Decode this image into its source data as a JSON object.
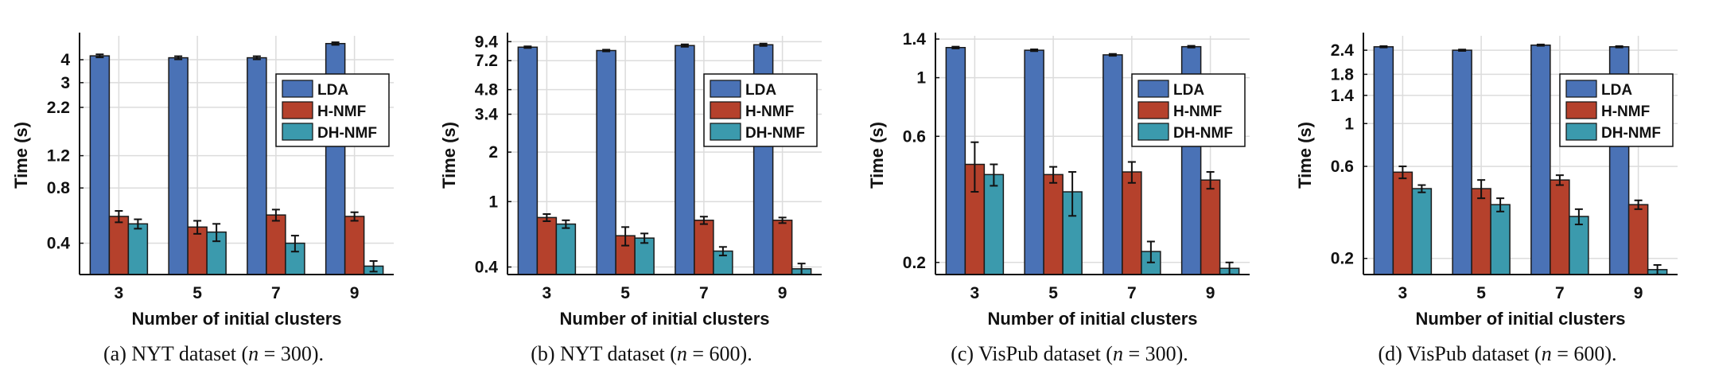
{
  "colors": {
    "LDA": "#4a72b6",
    "H-NMF": "#b5412c",
    "DH-NMF": "#3b9aad"
  },
  "chart_data": [
    {
      "type": "bar",
      "caption": {
        "prefix": "(a) NYT dataset (",
        "var": "n",
        "suffix": " = 300)."
      },
      "categories": [
        "3",
        "5",
        "7",
        "9"
      ],
      "xlabel": "Number of initial clusters",
      "ylabel": "Time (s)",
      "yscale": "log",
      "ylim": [
        0.27,
        5.4
      ],
      "yticks": [
        0.4,
        0.8,
        1.2,
        2.2,
        3,
        4
      ],
      "yticklabels": [
        "0.4",
        "0.8",
        "1.2",
        "2.2",
        "3",
        "4"
      ],
      "legend": "upper-right",
      "series": [
        {
          "name": "LDA",
          "values": [
            4.2,
            4.1,
            4.1,
            4.9
          ],
          "errors": [
            0.08,
            0.08,
            0.08,
            0.08
          ]
        },
        {
          "name": "H-NMF",
          "values": [
            0.56,
            0.49,
            0.57,
            0.56
          ],
          "errors": [
            0.04,
            0.04,
            0.04,
            0.03
          ]
        },
        {
          "name": "DH-NMF",
          "values": [
            0.51,
            0.46,
            0.4,
            0.3
          ],
          "errors": [
            0.03,
            0.05,
            0.04,
            0.02
          ]
        }
      ]
    },
    {
      "type": "bar",
      "caption": {
        "prefix": "(b) NYT dataset (",
        "var": "n",
        "suffix": " = 600)."
      },
      "categories": [
        "3",
        "5",
        "7",
        "9"
      ],
      "xlabel": "Number of initial clusters",
      "ylabel": "Time (s)",
      "yscale": "log",
      "ylim": [
        0.36,
        10.2
      ],
      "yticks": [
        0.4,
        1,
        2,
        3.4,
        4.8,
        7.2,
        9.4
      ],
      "yticklabels": [
        "0.4",
        "1",
        "2",
        "3.4",
        "4.8",
        "7.2",
        "9.4"
      ],
      "legend": "upper-right",
      "series": [
        {
          "name": "LDA",
          "values": [
            8.7,
            8.3,
            8.9,
            9.0
          ],
          "errors": [
            0.1,
            0.1,
            0.15,
            0.15
          ]
        },
        {
          "name": "H-NMF",
          "values": [
            0.8,
            0.62,
            0.77,
            0.77
          ],
          "errors": [
            0.04,
            0.08,
            0.04,
            0.03
          ]
        },
        {
          "name": "DH-NMF",
          "values": [
            0.73,
            0.6,
            0.5,
            0.39
          ],
          "errors": [
            0.04,
            0.04,
            0.03,
            0.03
          ]
        }
      ]
    },
    {
      "type": "bar",
      "caption": {
        "prefix": "(c) VisPub dataset (",
        "var": "n",
        "suffix": " = 300)."
      },
      "categories": [
        "3",
        "5",
        "7",
        "9"
      ],
      "xlabel": "Number of initial clusters",
      "ylabel": "Time (s)",
      "yscale": "log",
      "ylim": [
        0.18,
        1.44
      ],
      "yticks": [
        0.2,
        0.6,
        1,
        1.4
      ],
      "yticklabels": [
        "0.2",
        "0.6",
        "1",
        "1.4"
      ],
      "legend": "upper-right",
      "series": [
        {
          "name": "LDA",
          "values": [
            1.3,
            1.27,
            1.22,
            1.31
          ],
          "errors": [
            0.01,
            0.01,
            0.01,
            0.01
          ]
        },
        {
          "name": "H-NMF",
          "values": [
            0.47,
            0.43,
            0.44,
            0.41
          ],
          "errors": [
            0.1,
            0.03,
            0.04,
            0.03
          ]
        },
        {
          "name": "DH-NMF",
          "values": [
            0.43,
            0.37,
            0.22,
            0.19
          ],
          "errors": [
            0.04,
            0.07,
            0.02,
            0.01
          ]
        }
      ]
    },
    {
      "type": "bar",
      "caption": {
        "prefix": "(d) VisPub dataset (",
        "var": "n",
        "suffix": " = 600)."
      },
      "categories": [
        "3",
        "5",
        "7",
        "9"
      ],
      "xlabel": "Number of initial clusters",
      "ylabel": "Time (s)",
      "yscale": "log",
      "ylim": [
        0.165,
        2.85
      ],
      "yticks": [
        0.2,
        0.6,
        1,
        1.4,
        1.8,
        2.4
      ],
      "yticklabels": [
        "0.2",
        "0.6",
        "1",
        "1.4",
        "1.8",
        "2.4"
      ],
      "legend": "upper-right",
      "series": [
        {
          "name": "LDA",
          "values": [
            2.5,
            2.4,
            2.55,
            2.5
          ],
          "errors": [
            0.02,
            0.02,
            0.02,
            0.02
          ]
        },
        {
          "name": "H-NMF",
          "values": [
            0.56,
            0.46,
            0.51,
            0.38
          ],
          "errors": [
            0.04,
            0.05,
            0.03,
            0.02
          ]
        },
        {
          "name": "DH-NMF",
          "values": [
            0.46,
            0.38,
            0.33,
            0.175
          ],
          "errors": [
            0.02,
            0.03,
            0.03,
            0.01
          ]
        }
      ]
    }
  ]
}
